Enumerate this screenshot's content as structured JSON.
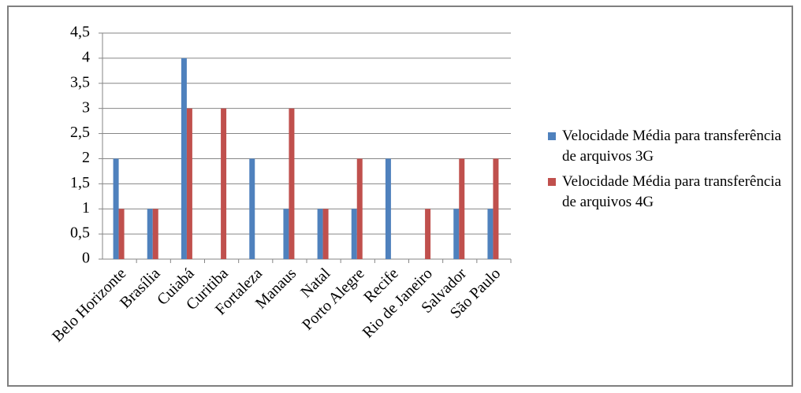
{
  "chart_data": {
    "type": "bar",
    "categories": [
      "Belo Horizonte",
      "Brasília",
      "Cuiabá",
      "Curitiba",
      "Fortaleza",
      "Manaus",
      "Natal",
      "Porto Alegre",
      "Recife",
      "Rio de Janeiro",
      "Salvador",
      "São Paulo"
    ],
    "series": [
      {
        "name": "Velocidade Média para transferência de arquivos 3G",
        "color": "#4f81bd",
        "values": [
          2,
          1,
          4,
          0,
          2,
          1,
          1,
          1,
          2,
          0,
          1,
          1
        ]
      },
      {
        "name": "Velocidade Média para transferência de arquivos 4G",
        "color": "#c0504d",
        "values": [
          1,
          1,
          3,
          3,
          0,
          3,
          1,
          2,
          0,
          1,
          2,
          2
        ]
      }
    ],
    "ylim": [
      0,
      4.5
    ],
    "yticks": [
      0,
      {
        "value": 0.5,
        "label": "0,5"
      },
      1,
      {
        "value": 1.5,
        "label": "1,5"
      },
      2,
      {
        "value": 2.5,
        "label": "2,5"
      },
      3,
      {
        "value": 3.5,
        "label": "3,5"
      },
      4,
      {
        "value": 4.5,
        "label": "4,5"
      }
    ],
    "grid": true,
    "legend": "right"
  }
}
